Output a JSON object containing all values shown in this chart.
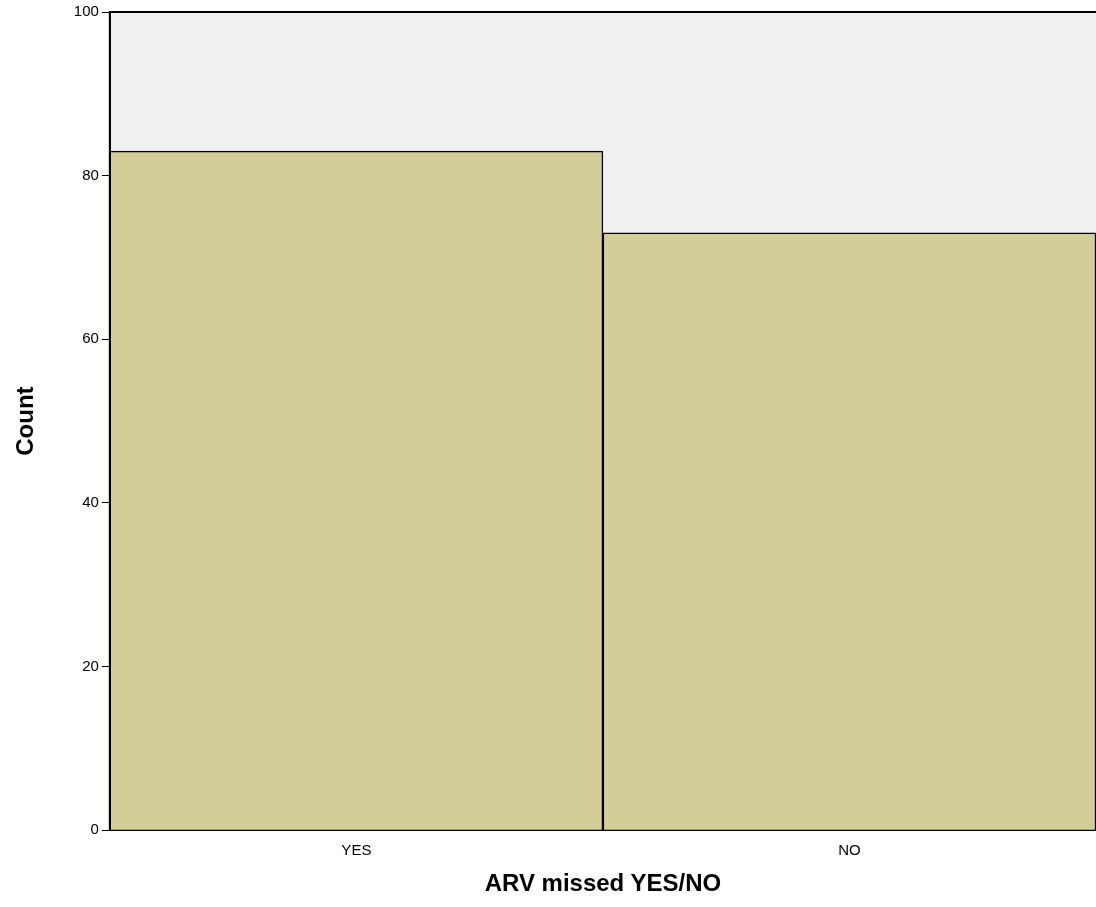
{
  "chart_data": {
    "type": "bar",
    "xlabel": "ARV missed YES/NO",
    "ylabel": "Count",
    "categories": [
      "YES",
      "NO"
    ],
    "values": [
      83,
      73
    ],
    "color": "#d3ce97",
    "ylim": [
      0,
      100
    ],
    "yticks": [
      0,
      20,
      40,
      60,
      80,
      100
    ],
    "grid": false,
    "legend": false
  }
}
